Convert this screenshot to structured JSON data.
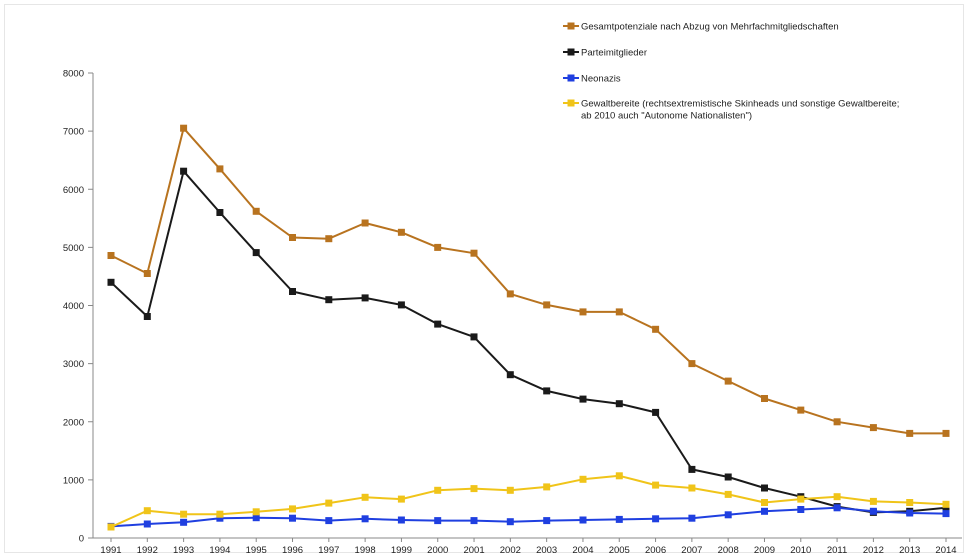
{
  "chart_data": {
    "type": "line",
    "title": "",
    "xlabel": "",
    "ylabel": "",
    "ylim": [
      0,
      8000
    ],
    "yticks": [
      0,
      1000,
      2000,
      3000,
      4000,
      5000,
      6000,
      7000,
      8000
    ],
    "grid": false,
    "legend_position": "top-right",
    "categories": [
      "1991",
      "1992",
      "1993",
      "1994",
      "1995",
      "1996",
      "1997",
      "1998",
      "1999",
      "2000",
      "2001",
      "2002",
      "2003",
      "2004",
      "2005",
      "2006",
      "2007",
      "2008",
      "2009",
      "2010",
      "2011",
      "2012",
      "2013",
      "2014"
    ],
    "series": [
      {
        "name": "Gesamtpotenziale nach Abzug von Mehrfachmitgliedschaften",
        "color": "#b8731f",
        "values": [
          4860,
          4550,
          7050,
          6350,
          5620,
          5170,
          5150,
          5420,
          5260,
          5000,
          4900,
          4200,
          4010,
          3890,
          3890,
          3590,
          3000,
          2700,
          2400,
          2200,
          2000,
          1900,
          1800,
          1800
        ]
      },
      {
        "name": "Parteimitglieder",
        "color": "#1a1a1a",
        "values": [
          4400,
          3810,
          6310,
          5600,
          4910,
          4240,
          4100,
          4130,
          4010,
          3680,
          3460,
          2810,
          2530,
          2390,
          2310,
          2160,
          1180,
          1050,
          860,
          710,
          540,
          440,
          460,
          520
        ]
      },
      {
        "name": "Neonazis",
        "color": "#1f3fe0",
        "values": [
          200,
          240,
          270,
          340,
          350,
          340,
          300,
          330,
          310,
          300,
          300,
          280,
          300,
          310,
          320,
          330,
          340,
          400,
          460,
          490,
          520,
          460,
          430,
          420
        ]
      },
      {
        "name": "Gewaltbereite (rechtsextremistische Skinheads und sonstige Gewaltbereite; ab 2010 auch \"Autonome Nationalisten\")",
        "legend_lines": [
          "Gewaltbereite (rechtsextremistische Skinheads und sonstige Gewaltbereite;",
          "ab 2010 auch \"Autonome Nationalisten\")"
        ],
        "color": "#f0c419",
        "values": [
          190,
          470,
          410,
          410,
          450,
          500,
          600,
          700,
          670,
          820,
          850,
          820,
          880,
          1010,
          1070,
          910,
          860,
          750,
          610,
          670,
          710,
          630,
          610,
          580
        ]
      }
    ]
  }
}
